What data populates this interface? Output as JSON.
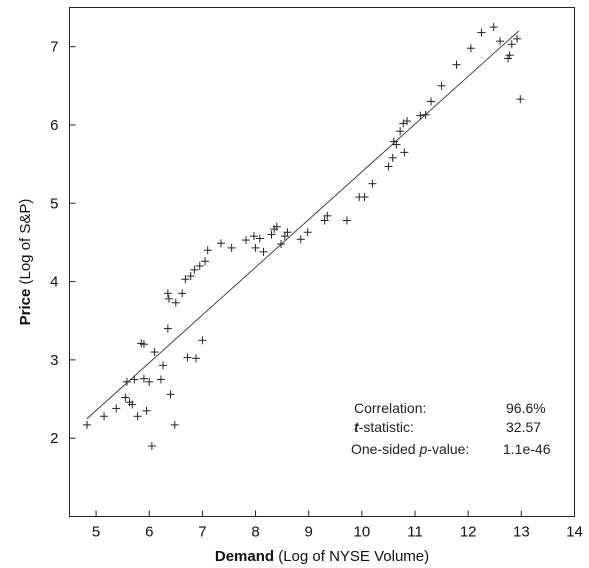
{
  "chart_data": {
    "type": "scatter",
    "title": "",
    "xlabel_bold": "Demand",
    "xlabel_rest": "(Log of NYSE Volume)",
    "ylabel_bold": "Price",
    "ylabel_rest": "(Log of S&P)",
    "xlim": [
      4.5,
      14
    ],
    "ylim": [
      1,
      7.5
    ],
    "xticks": [
      5,
      6,
      7,
      8,
      9,
      10,
      11,
      12,
      13,
      14
    ],
    "yticks": [
      2,
      3,
      4,
      5,
      6,
      7
    ],
    "grid": false,
    "legend": "none",
    "marker": "plus",
    "points": [
      [
        4.83,
        2.17
      ],
      [
        5.15,
        2.28
      ],
      [
        5.38,
        2.38
      ],
      [
        5.55,
        2.52
      ],
      [
        5.58,
        2.72
      ],
      [
        5.63,
        2.46
      ],
      [
        5.68,
        2.43
      ],
      [
        5.72,
        2.75
      ],
      [
        5.78,
        2.28
      ],
      [
        5.85,
        3.21
      ],
      [
        5.9,
        3.2
      ],
      [
        5.9,
        2.76
      ],
      [
        5.95,
        2.35
      ],
      [
        6.0,
        2.72
      ],
      [
        6.05,
        1.9
      ],
      [
        6.1,
        3.1
      ],
      [
        6.22,
        2.75
      ],
      [
        6.26,
        2.93
      ],
      [
        6.35,
        3.4
      ],
      [
        6.35,
        3.85
      ],
      [
        6.37,
        3.78
      ],
      [
        6.4,
        2.56
      ],
      [
        6.48,
        2.17
      ],
      [
        6.5,
        3.73
      ],
      [
        6.62,
        3.85
      ],
      [
        6.68,
        4.03
      ],
      [
        6.72,
        3.03
      ],
      [
        6.78,
        4.07
      ],
      [
        6.85,
        4.15
      ],
      [
        6.88,
        3.02
      ],
      [
        6.95,
        4.2
      ],
      [
        7.0,
        3.25
      ],
      [
        7.05,
        4.26
      ],
      [
        7.1,
        4.4
      ],
      [
        7.35,
        4.49
      ],
      [
        7.55,
        4.43
      ],
      [
        7.82,
        4.53
      ],
      [
        7.97,
        4.58
      ],
      [
        8.0,
        4.43
      ],
      [
        8.08,
        4.55
      ],
      [
        8.15,
        4.38
      ],
      [
        8.3,
        4.6
      ],
      [
        8.35,
        4.67
      ],
      [
        8.4,
        4.7
      ],
      [
        8.48,
        4.48
      ],
      [
        8.55,
        4.58
      ],
      [
        8.6,
        4.63
      ],
      [
        8.85,
        4.54
      ],
      [
        8.98,
        4.63
      ],
      [
        9.3,
        4.78
      ],
      [
        9.35,
        4.84
      ],
      [
        9.72,
        4.78
      ],
      [
        9.95,
        5.08
      ],
      [
        10.05,
        5.08
      ],
      [
        10.2,
        5.25
      ],
      [
        10.5,
        5.47
      ],
      [
        10.58,
        5.58
      ],
      [
        10.6,
        5.79
      ],
      [
        10.65,
        5.75
      ],
      [
        10.72,
        5.92
      ],
      [
        10.78,
        6.02
      ],
      [
        10.8,
        5.65
      ],
      [
        10.85,
        6.05
      ],
      [
        11.1,
        6.12
      ],
      [
        11.2,
        6.13
      ],
      [
        11.3,
        6.3
      ],
      [
        11.5,
        6.5
      ],
      [
        11.78,
        6.77
      ],
      [
        12.05,
        6.98
      ],
      [
        12.25,
        7.18
      ],
      [
        12.48,
        7.25
      ],
      [
        12.6,
        7.07
      ],
      [
        12.75,
        6.85
      ],
      [
        12.78,
        6.89
      ],
      [
        12.82,
        7.03
      ],
      [
        12.92,
        7.1
      ],
      [
        12.98,
        6.33
      ]
    ],
    "fit_line": {
      "x": [
        4.83,
        12.95
      ],
      "y": [
        2.25,
        7.2
      ]
    },
    "annotations": [
      {
        "label": "Correlation:",
        "value": "96.6%"
      },
      {
        "label_bold": "t",
        "label_rest": "-statistic:",
        "value": "32.57"
      },
      {
        "label_pre": "One-sided ",
        "label_italic": "p",
        "label_rest": "-value:",
        "value": "1.1e-46"
      }
    ]
  }
}
